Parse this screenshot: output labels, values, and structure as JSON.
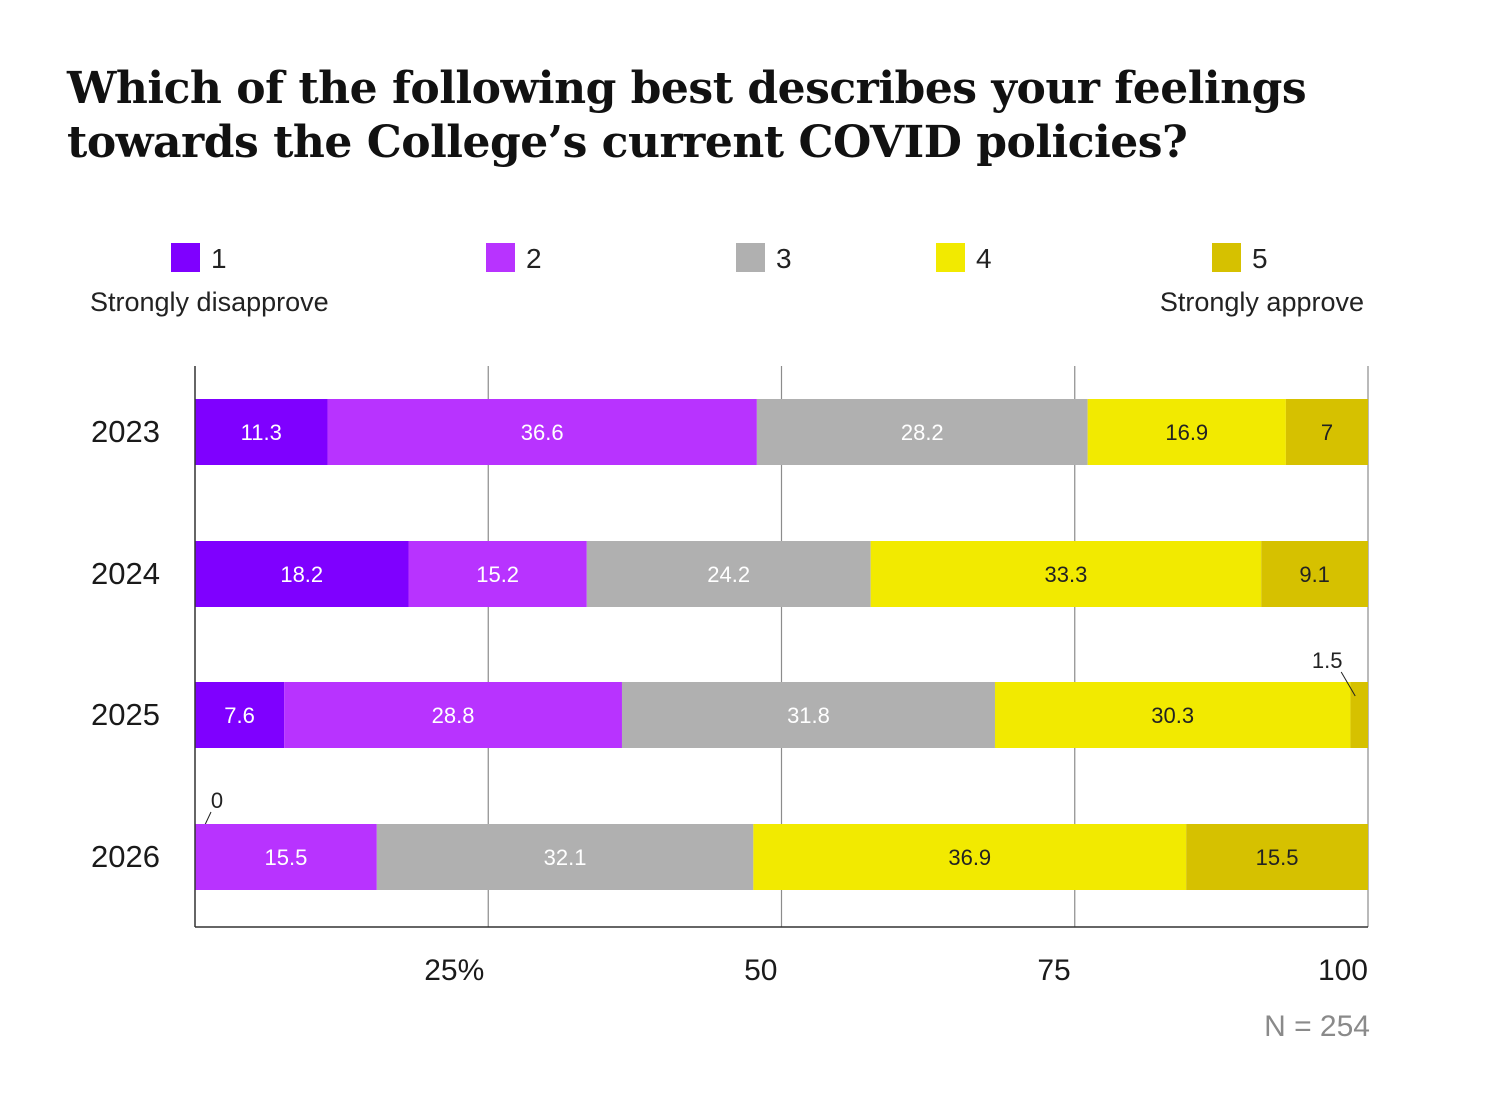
{
  "chart_data": {
    "type": "bar",
    "orientation": "horizontal",
    "stacked": true,
    "title": "Which of the following best describes your feelings towards the College’s current COVID policies?",
    "categories": [
      "2023",
      "2024",
      "2025",
      "2026"
    ],
    "series": [
      {
        "name": "1",
        "color": "#7f00ff",
        "label_color": "#ffffff",
        "values": [
          11.3,
          18.2,
          7.6,
          0
        ]
      },
      {
        "name": "2",
        "color": "#b833ff",
        "label_color": "#ffffff",
        "values": [
          36.6,
          15.2,
          28.8,
          15.5
        ]
      },
      {
        "name": "3",
        "color": "#b0b0b0",
        "label_color": "#ffffff",
        "values": [
          28.2,
          24.2,
          31.8,
          32.1
        ]
      },
      {
        "name": "4",
        "color": "#f2ea00",
        "label_color": "#222222",
        "values": [
          16.9,
          33.3,
          30.3,
          36.9
        ]
      },
      {
        "name": "5",
        "color": "#d6c100",
        "label_color": "#222222",
        "values": [
          7,
          9.1,
          1.5,
          15.5
        ]
      }
    ],
    "legend_left_caption": "Strongly disapprove",
    "legend_right_caption": "Strongly approve",
    "x_ticks": [
      {
        "value": 25,
        "label": "25%"
      },
      {
        "value": 50,
        "label": "50"
      },
      {
        "value": 75,
        "label": "75"
      },
      {
        "value": 100,
        "label": "100"
      }
    ],
    "xlim": [
      0,
      100
    ],
    "grid": true,
    "legend_position": "top",
    "footnote": "N = 254"
  }
}
